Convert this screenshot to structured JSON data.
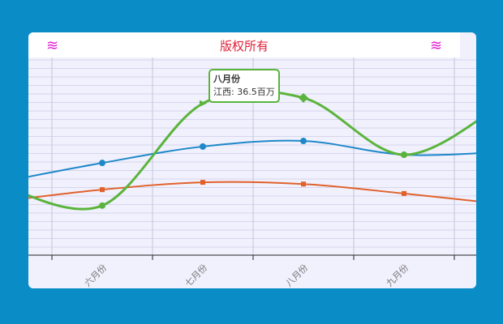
{
  "chart_data": {
    "type": "line",
    "title": "版权所有",
    "categories": [
      "六月份",
      "七月份",
      "八月份",
      "九月份"
    ],
    "series": [
      {
        "color": "#1e88c8",
        "marker": "circle",
        "values": [
          21.4,
          25.2,
          26.5,
          23.3
        ]
      },
      {
        "color": "#e0622a",
        "marker": "square",
        "values": [
          15.2,
          16.9,
          16.5,
          14.3
        ]
      },
      {
        "name": "江西",
        "color": "#5ab43c",
        "marker": "mixed",
        "values": [
          11.5,
          35.2,
          36.5,
          23.3
        ]
      }
    ],
    "unit": "百万",
    "grid": true,
    "smooth": true,
    "tooltip": {
      "title": "八月份",
      "text": "江西: 36.5百万"
    }
  },
  "icons": {
    "left": "wind-icon",
    "right": "wind-icon"
  }
}
